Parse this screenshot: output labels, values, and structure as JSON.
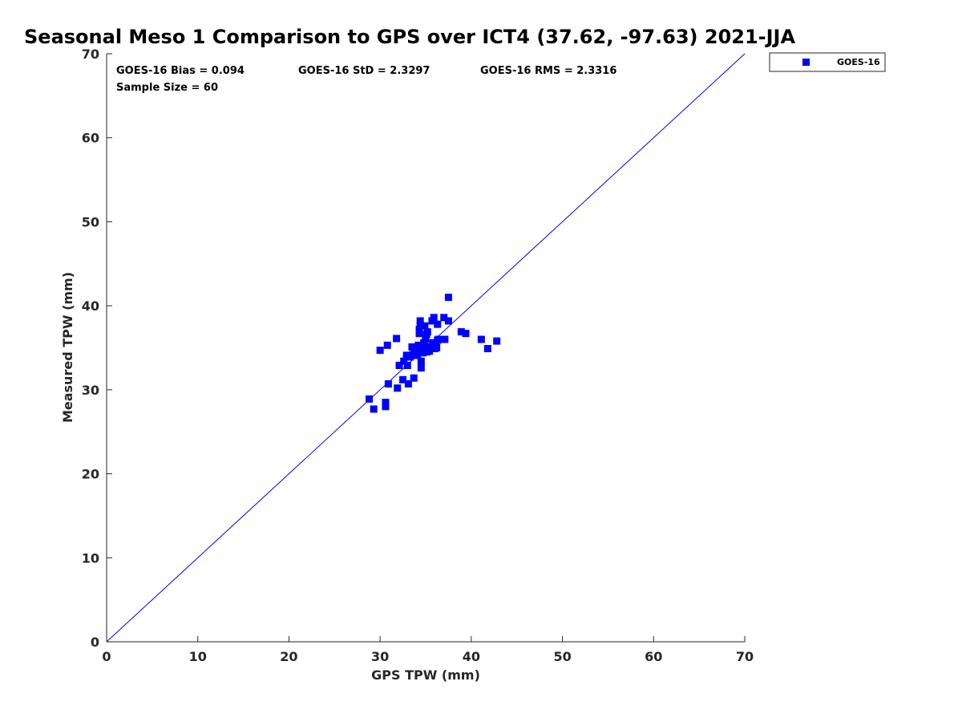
{
  "chart_data": {
    "type": "scatter",
    "title": "Seasonal Meso 1 Comparison to GPS over ICT4 (37.62, -97.63) 2021-JJA",
    "xlabel": "GPS TPW (mm)",
    "ylabel": "Measured TPW (mm)",
    "xlim": [
      0,
      70
    ],
    "ylim": [
      0,
      70
    ],
    "xticks": [
      0,
      10,
      20,
      30,
      40,
      50,
      60,
      70
    ],
    "yticks": [
      0,
      10,
      20,
      30,
      40,
      50,
      60,
      70
    ],
    "grid": false,
    "legend_position": "outside-top-right",
    "reference_line": {
      "x": [
        0,
        70
      ],
      "y": [
        0,
        70
      ],
      "color": "#0000ff"
    },
    "stats": {
      "bias": "GOES-16 Bias = 0.094",
      "std": "GOES-16 StD = 2.3297",
      "rms": "GOES-16 RMS = 2.3316",
      "sample": "Sample Size = 60"
    },
    "series": [
      {
        "name": "GOES-16",
        "color": "#0000ff",
        "marker": "square",
        "points": [
          [
            28.8,
            28.9
          ],
          [
            29.3,
            27.7
          ],
          [
            30.0,
            34.7
          ],
          [
            30.6,
            28.5
          ],
          [
            30.6,
            28.0
          ],
          [
            30.8,
            35.3
          ],
          [
            30.9,
            30.7
          ],
          [
            31.8,
            36.1
          ],
          [
            31.9,
            30.2
          ],
          [
            32.1,
            32.9
          ],
          [
            32.5,
            31.2
          ],
          [
            32.6,
            33.4
          ],
          [
            32.9,
            34.1
          ],
          [
            33.0,
            32.9
          ],
          [
            33.1,
            30.7
          ],
          [
            33.3,
            33.9
          ],
          [
            33.5,
            35.1
          ],
          [
            33.7,
            31.4
          ],
          [
            33.8,
            34.4
          ],
          [
            34.0,
            34.9
          ],
          [
            34.1,
            34.1
          ],
          [
            34.2,
            35.3
          ],
          [
            34.3,
            36.7
          ],
          [
            34.3,
            37.2
          ],
          [
            34.4,
            37.7
          ],
          [
            34.4,
            38.2
          ],
          [
            34.4,
            34.6
          ],
          [
            34.5,
            33.4
          ],
          [
            34.5,
            32.6
          ],
          [
            34.6,
            35.1
          ],
          [
            34.7,
            34.4
          ],
          [
            34.8,
            35.6
          ],
          [
            34.9,
            37.6
          ],
          [
            35.0,
            36.0
          ],
          [
            35.1,
            34.5
          ],
          [
            35.1,
            36.6
          ],
          [
            35.2,
            36.9
          ],
          [
            35.3,
            35.1
          ],
          [
            35.4,
            34.6
          ],
          [
            35.6,
            35.0
          ],
          [
            35.7,
            38.2
          ],
          [
            35.8,
            35.6
          ],
          [
            35.9,
            38.6
          ],
          [
            36.0,
            34.9
          ],
          [
            36.1,
            35.4
          ],
          [
            36.2,
            35.0
          ],
          [
            36.3,
            37.8
          ],
          [
            36.3,
            35.9
          ],
          [
            36.4,
            36.0
          ],
          [
            37.0,
            38.6
          ],
          [
            37.1,
            36.0
          ],
          [
            37.5,
            38.2
          ],
          [
            37.5,
            41.0
          ],
          [
            38.9,
            36.9
          ],
          [
            39.4,
            36.7
          ],
          [
            41.1,
            36.0
          ],
          [
            41.8,
            34.9
          ],
          [
            42.8,
            35.8
          ],
          [
            33.6,
            34.2
          ],
          [
            35.5,
            34.9
          ]
        ]
      }
    ]
  }
}
